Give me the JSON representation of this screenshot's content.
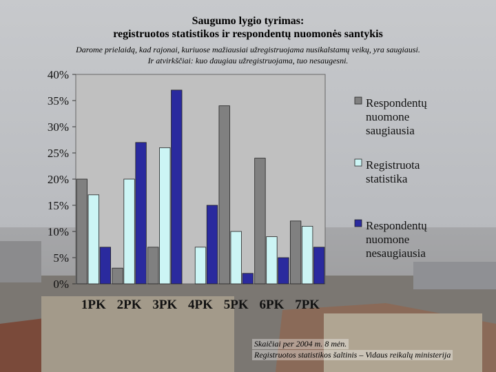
{
  "title_line1": "Saugumo lygio tyrimas:",
  "title_line2": "registruotos statistikos ir respondentų nuomonės santykis",
  "note_line1": "Darome prielaidą, kad rajonai, kuriuose mažiausiai užregistruojama nusikalstamų veikų, yra saugiausi.",
  "note_line2": "Ir atvirkščiai: kuo daugiau užregistruojama, tuo nesaugesni.",
  "source_line1": "Skaičiai per 2004 m. 8 mėn.",
  "source_line2": "Registruotos statistikos šaltinis – Vidaus reikalų ministerija",
  "chart_data": {
    "type": "bar",
    "categories": [
      "1PK",
      "2PK",
      "3PK",
      "4PK",
      "5PK",
      "6PK",
      "7PK"
    ],
    "series": [
      {
        "name": "Respondentų nuomone saugiausia",
        "legend_lines": [
          "Respondentų",
          "nuomone",
          "saugiausia"
        ],
        "color": "#808080",
        "values": [
          20,
          3,
          7,
          0,
          34,
          24,
          12
        ]
      },
      {
        "name": "Registruota statistika",
        "legend_lines": [
          "Registruota",
          "statistika"
        ],
        "color": "#ccf5f5",
        "values": [
          17,
          20,
          26,
          7,
          10,
          9,
          11
        ]
      },
      {
        "name": "Respondentų nuomone nesaugiausia",
        "legend_lines": [
          "Respondentų",
          "nuomone",
          "nesaugiausia"
        ],
        "color": "#2a2a9e",
        "values": [
          7,
          27,
          37,
          15,
          2,
          5,
          7
        ]
      }
    ],
    "yticks": [
      "0%",
      "5%",
      "10%",
      "15%",
      "20%",
      "25%",
      "30%",
      "35%",
      "40%"
    ],
    "ylim": [
      0,
      40
    ],
    "grid": false,
    "legend": "right"
  }
}
